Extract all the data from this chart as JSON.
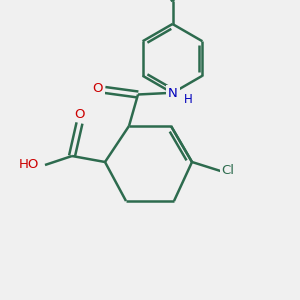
{
  "bg_color": "#f0f0f0",
  "bond_color": "#2d6b4e",
  "bond_width": 1.8,
  "atom_colors": {
    "O": "#cc0000",
    "N": "#0000bb",
    "Cl": "#2d6b4e",
    "H": "#555555"
  },
  "xlim": [
    0,
    10
  ],
  "ylim": [
    0,
    10
  ],
  "figsize": [
    3.0,
    3.0
  ],
  "dpi": 100
}
